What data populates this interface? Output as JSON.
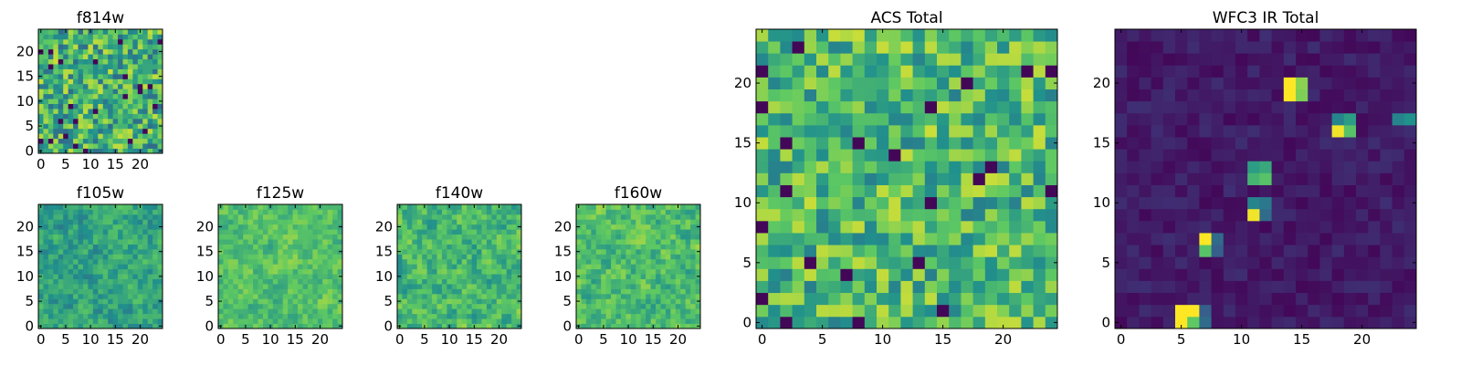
{
  "figure": {
    "background": "#ffffff",
    "colormap": "viridis",
    "colormap_stops": [
      "#440154",
      "#3b528b",
      "#21918c",
      "#5ec962",
      "#fde725"
    ],
    "grid_size": 25
  },
  "chart_data": [
    {
      "id": "f814w",
      "type": "heatmap",
      "title": "f814w",
      "xlim": [
        -0.5,
        24.5
      ],
      "ylim": [
        -0.5,
        24.5
      ],
      "xticks": [
        0,
        5,
        10,
        15,
        20
      ],
      "yticks": [
        0,
        5,
        10,
        15,
        20
      ],
      "xtick_labels": [
        "0",
        "5",
        "10",
        "15",
        "20"
      ],
      "ytick_labels": [
        "0",
        "5",
        "10",
        "15",
        "20"
      ],
      "value_range": [
        0,
        1
      ],
      "field": {
        "seed": 814,
        "base": 0.62,
        "spread": 0.3,
        "kind": "noise"
      }
    },
    {
      "id": "f105w",
      "type": "heatmap",
      "title": "f105w",
      "xlim": [
        -0.5,
        24.5
      ],
      "ylim": [
        -0.5,
        24.5
      ],
      "xticks": [
        0,
        5,
        10,
        15,
        20
      ],
      "yticks": [
        0,
        5,
        10,
        15,
        20
      ],
      "xtick_labels": [
        "0",
        "5",
        "10",
        "15",
        "20"
      ],
      "ytick_labels": [
        "0",
        "5",
        "10",
        "15",
        "20"
      ],
      "value_range": [
        0,
        1
      ],
      "field": {
        "seed": 105,
        "base": 0.58,
        "spread": 0.24,
        "kind": "smooth"
      }
    },
    {
      "id": "f125w",
      "type": "heatmap",
      "title": "f125w",
      "xlim": [
        -0.5,
        24.5
      ],
      "ylim": [
        -0.5,
        24.5
      ],
      "xticks": [
        0,
        5,
        10,
        15,
        20
      ],
      "yticks": [
        0,
        5,
        10,
        15,
        20
      ],
      "xtick_labels": [
        "0",
        "5",
        "10",
        "15",
        "20"
      ],
      "ytick_labels": [
        "0",
        "5",
        "10",
        "15",
        "20"
      ],
      "value_range": [
        0,
        1
      ],
      "field": {
        "seed": 125,
        "base": 0.7,
        "spread": 0.2,
        "kind": "smooth"
      }
    },
    {
      "id": "f140w",
      "type": "heatmap",
      "title": "f140w",
      "xlim": [
        -0.5,
        24.5
      ],
      "ylim": [
        -0.5,
        24.5
      ],
      "xticks": [
        0,
        5,
        10,
        15,
        20
      ],
      "yticks": [
        0,
        5,
        10,
        15,
        20
      ],
      "xtick_labels": [
        "0",
        "5",
        "10",
        "15",
        "20"
      ],
      "ytick_labels": [
        "0",
        "5",
        "10",
        "15",
        "20"
      ],
      "value_range": [
        0,
        1
      ],
      "field": {
        "seed": 140,
        "base": 0.66,
        "spread": 0.26,
        "kind": "smooth"
      }
    },
    {
      "id": "f160w",
      "type": "heatmap",
      "title": "f160w",
      "xlim": [
        -0.5,
        24.5
      ],
      "ylim": [
        -0.5,
        24.5
      ],
      "xticks": [
        0,
        5,
        10,
        15,
        20
      ],
      "yticks": [
        0,
        5,
        10,
        15,
        20
      ],
      "xtick_labels": [
        "0",
        "5",
        "10",
        "15",
        "20"
      ],
      "ytick_labels": [
        "0",
        "5",
        "10",
        "15",
        "20"
      ],
      "value_range": [
        0,
        1
      ],
      "field": {
        "seed": 160,
        "base": 0.68,
        "spread": 0.24,
        "kind": "smooth"
      }
    },
    {
      "id": "acs-total",
      "type": "heatmap",
      "title": "ACS Total",
      "xlim": [
        -0.5,
        24.5
      ],
      "ylim": [
        -0.5,
        24.5
      ],
      "xticks": [
        0,
        5,
        10,
        15,
        20
      ],
      "yticks": [
        0,
        5,
        10,
        15,
        20
      ],
      "xtick_labels": [
        "0",
        "5",
        "10",
        "15",
        "20"
      ],
      "ytick_labels": [
        "0",
        "5",
        "10",
        "15",
        "20"
      ],
      "value_range": [
        0,
        1
      ],
      "field": {
        "seed": 999,
        "base": 0.66,
        "spread": 0.26,
        "kind": "noise"
      }
    },
    {
      "id": "wfc3-ir-total",
      "type": "heatmap",
      "title": "WFC3 IR Total",
      "xlim": [
        -0.5,
        24.5
      ],
      "ylim": [
        -0.5,
        24.5
      ],
      "xticks": [
        0,
        5,
        10,
        15,
        20
      ],
      "yticks": [
        0,
        5,
        10,
        15,
        20
      ],
      "xtick_labels": [
        "0",
        "5",
        "10",
        "15",
        "20"
      ],
      "ytick_labels": [
        "0",
        "5",
        "10",
        "15",
        "20"
      ],
      "value_range": [
        0,
        1
      ],
      "field": {
        "seed": 3,
        "base": 0.08,
        "spread": 0.06,
        "kind": "noise"
      },
      "bright_pixels": [
        {
          "x": 14,
          "y": 20,
          "value": 1.0
        },
        {
          "x": 14,
          "y": 19,
          "value": 1.0
        },
        {
          "x": 15,
          "y": 20,
          "value": 0.82
        },
        {
          "x": 15,
          "y": 19,
          "value": 0.8
        },
        {
          "x": 18,
          "y": 16,
          "value": 0.98
        },
        {
          "x": 18,
          "y": 17,
          "value": 0.45
        },
        {
          "x": 19,
          "y": 16,
          "value": 0.72
        },
        {
          "x": 19,
          "y": 17,
          "value": 0.55
        },
        {
          "x": 24,
          "y": 17,
          "value": 0.5
        },
        {
          "x": 23,
          "y": 17,
          "value": 0.45
        },
        {
          "x": 11,
          "y": 12,
          "value": 0.65
        },
        {
          "x": 12,
          "y": 12,
          "value": 0.72
        },
        {
          "x": 11,
          "y": 13,
          "value": 0.55
        },
        {
          "x": 12,
          "y": 13,
          "value": 0.6
        },
        {
          "x": 11,
          "y": 10,
          "value": 0.45
        },
        {
          "x": 12,
          "y": 10,
          "value": 0.4
        },
        {
          "x": 11,
          "y": 9,
          "value": 0.98
        },
        {
          "x": 12,
          "y": 9,
          "value": 0.35
        },
        {
          "x": 7,
          "y": 7,
          "value": 1.0
        },
        {
          "x": 7,
          "y": 6,
          "value": 0.72
        },
        {
          "x": 8,
          "y": 7,
          "value": 0.35
        },
        {
          "x": 8,
          "y": 6,
          "value": 0.3
        },
        {
          "x": 5,
          "y": 1,
          "value": 1.0
        },
        {
          "x": 6,
          "y": 1,
          "value": 1.0
        },
        {
          "x": 5,
          "y": 0,
          "value": 1.0
        },
        {
          "x": 6,
          "y": 0,
          "value": 0.75
        },
        {
          "x": 7,
          "y": 0,
          "value": 0.35
        },
        {
          "x": 7,
          "y": 1,
          "value": 0.3
        }
      ]
    }
  ]
}
